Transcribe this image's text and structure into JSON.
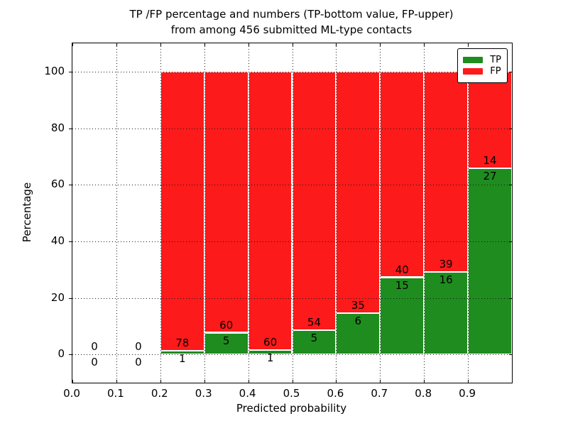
{
  "title": {
    "line1": "TP /FP percentage and numbers (TP-bottom value, FP-upper)",
    "line2": "from among 456 submitted ML-type contacts"
  },
  "axes": {
    "xlabel": "Predicted probability",
    "ylabel": "Percentage",
    "xtick_labels": [
      "0.0",
      "0.1",
      "0.2",
      "0.3",
      "0.4",
      "0.5",
      "0.6",
      "0.7",
      "0.8",
      "0.9"
    ],
    "ytick_labels": [
      "0",
      "20",
      "40",
      "60",
      "80",
      "100"
    ]
  },
  "legend": {
    "position": "upper right",
    "items": [
      {
        "label": "TP",
        "color": "#1f8c1f"
      },
      {
        "label": "FP",
        "color": "#fc1a1a"
      }
    ]
  },
  "chart_data": {
    "type": "bar",
    "stacked": true,
    "normalized": "each bin stacks to 100%",
    "title": "TP /FP percentage and numbers (TP-bottom value, FP-upper) from among 456 submitted ML-type contacts",
    "xlabel": "Predicted probability",
    "ylabel": "Percentage",
    "xlim": [
      0.0,
      1.0
    ],
    "ylim": [
      -10,
      110
    ],
    "grid": true,
    "total_contacts": 456,
    "bin_edges": [
      0.0,
      0.1,
      0.2,
      0.3,
      0.4,
      0.5,
      0.6,
      0.7,
      0.8,
      0.9,
      1.0
    ],
    "series": [
      {
        "name": "TP",
        "color": "#1f8c1f",
        "counts": [
          0,
          0,
          1,
          5,
          1,
          5,
          6,
          15,
          16,
          27
        ],
        "pct": [
          0,
          0,
          1.27,
          7.69,
          1.64,
          8.47,
          14.63,
          27.27,
          29.09,
          65.85
        ]
      },
      {
        "name": "FP",
        "color": "#fc1a1a",
        "counts": [
          0,
          0,
          78,
          60,
          60,
          54,
          35,
          40,
          39,
          14
        ],
        "pct": [
          0,
          0,
          98.73,
          92.31,
          98.36,
          91.53,
          85.37,
          72.73,
          70.91,
          34.15
        ]
      }
    ]
  },
  "colors": {
    "background": "#ffffff",
    "axis": "#000000",
    "grid": "#1a1a1a",
    "bar_edge": "#ffffff",
    "text": "#000000"
  }
}
